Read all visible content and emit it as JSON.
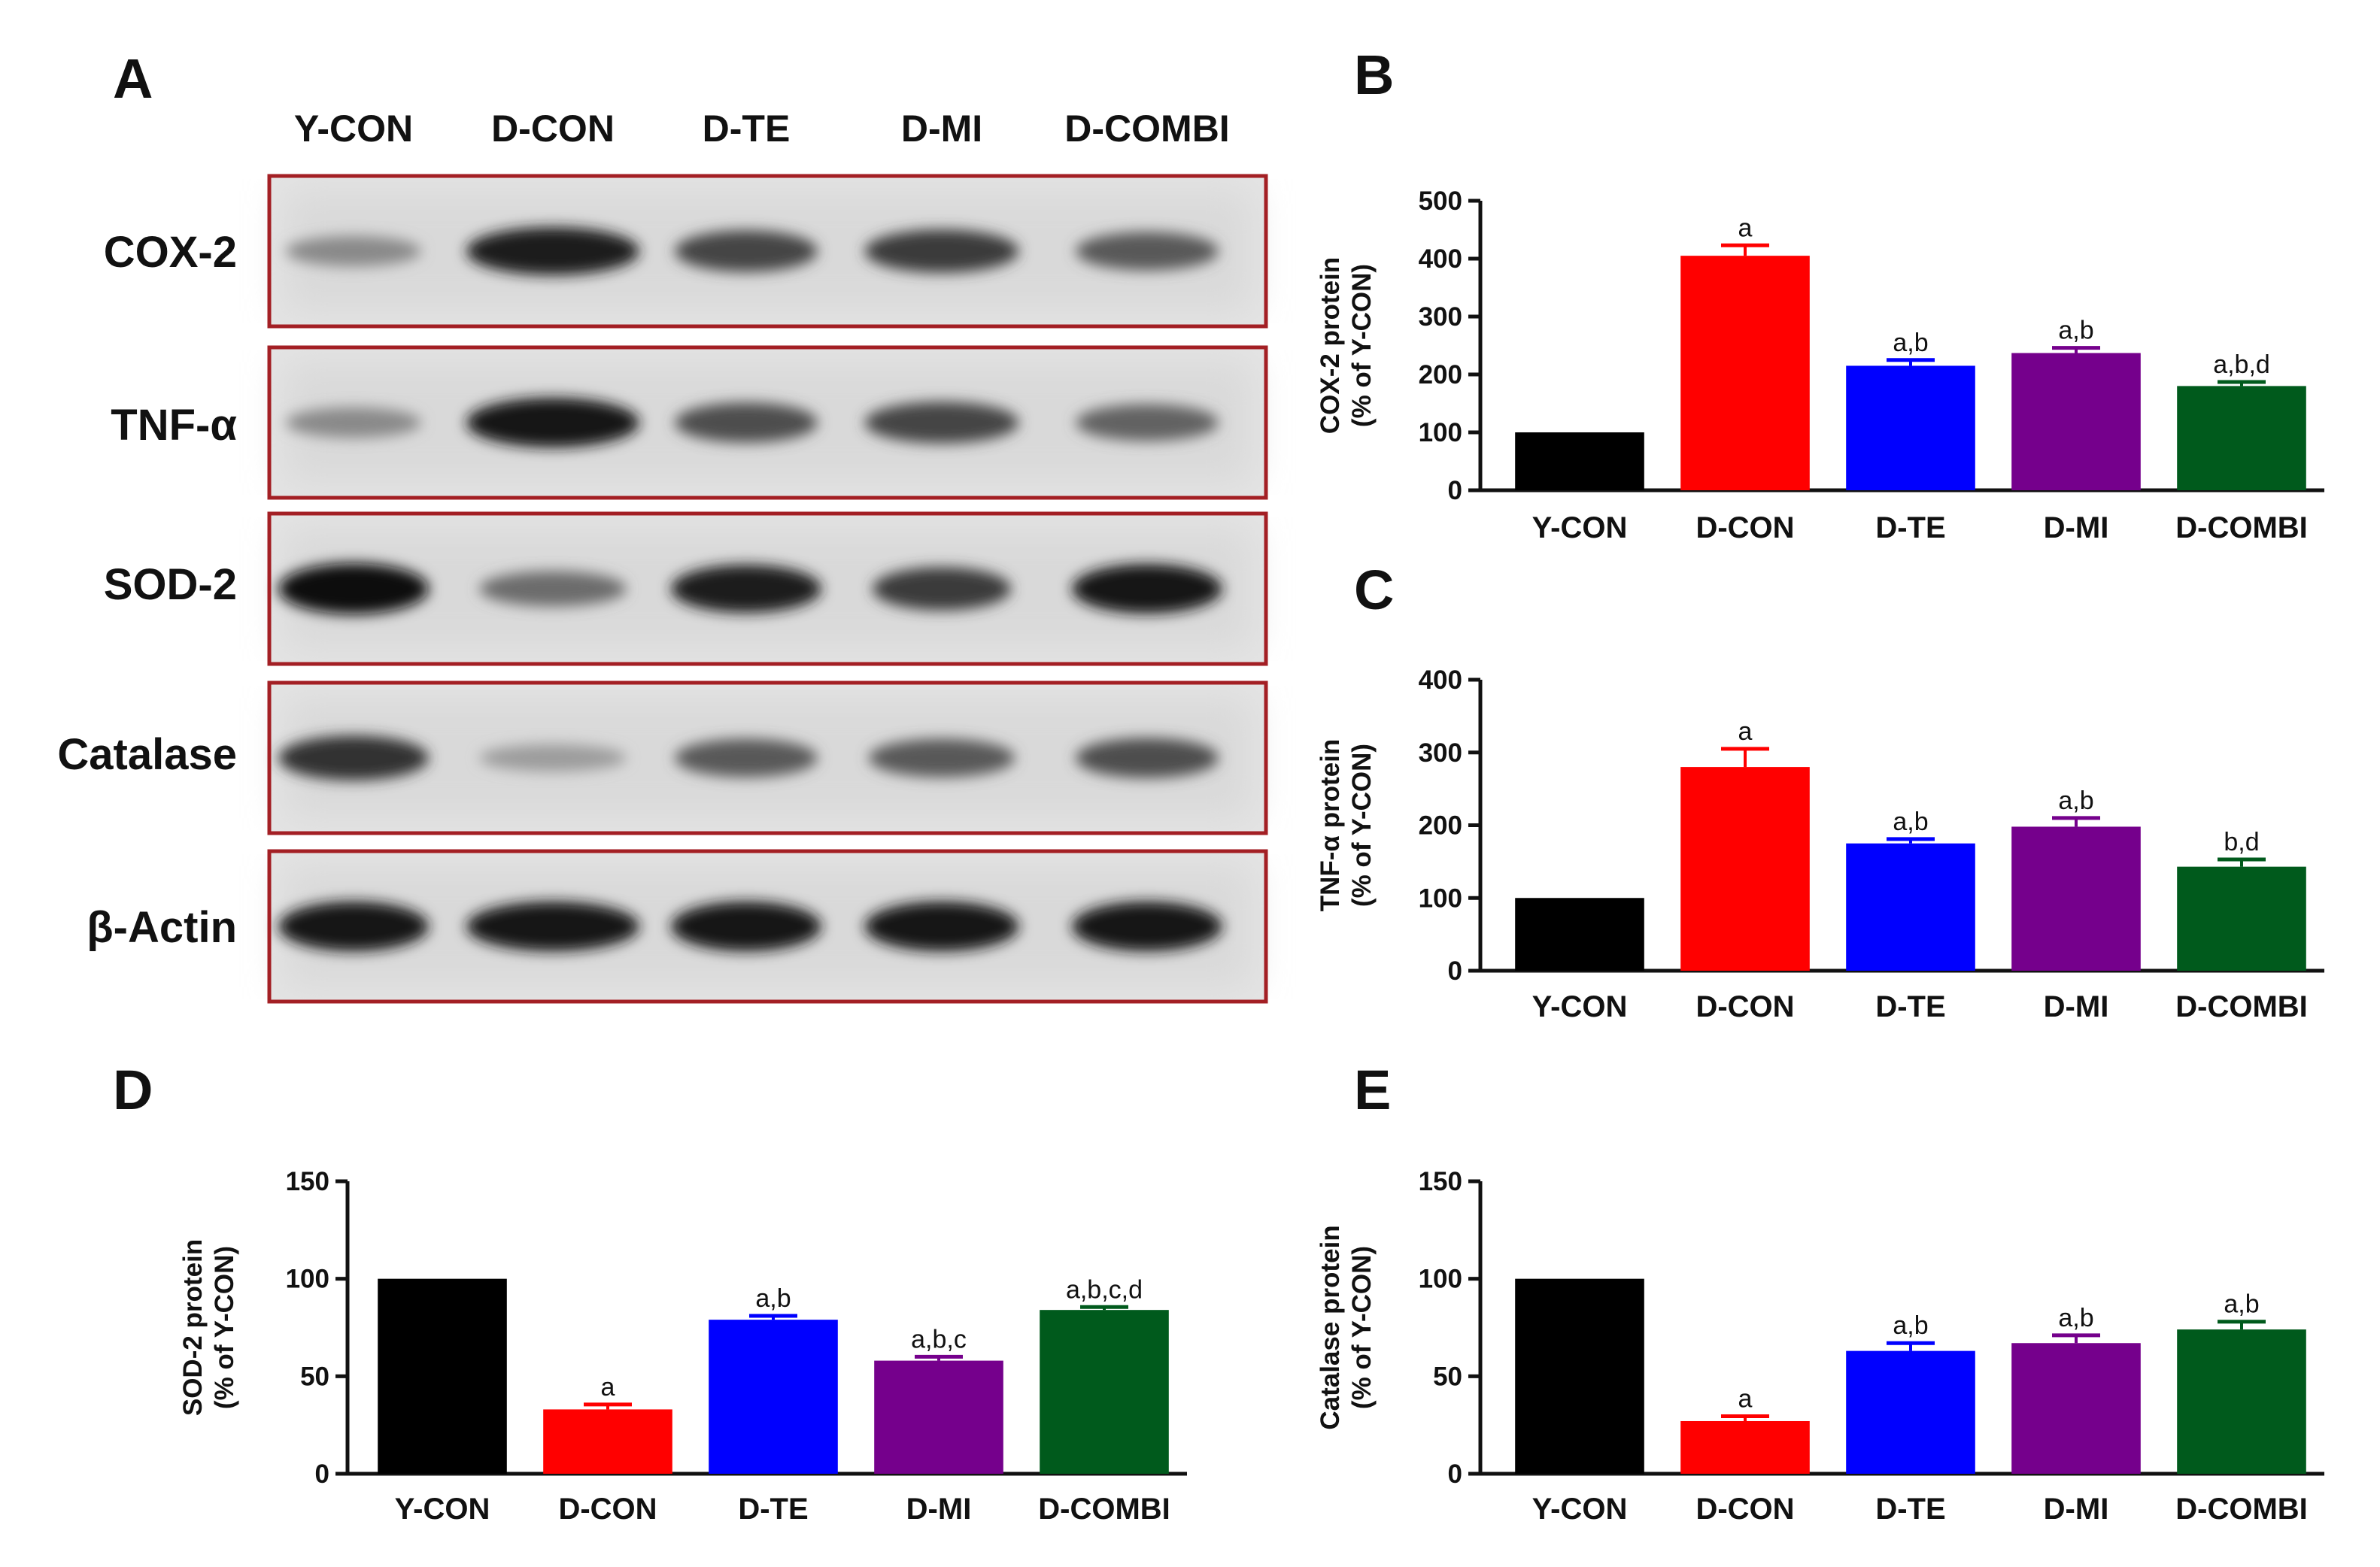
{
  "blot": {
    "panel_letter": "A",
    "lanes": [
      "Y-CON",
      "D-CON",
      "D-TE",
      "D-MI",
      "D-COMBI"
    ],
    "frame_color": "#a31f24",
    "rows": [
      {
        "label": "COX-2",
        "intensities": [
          0.35,
          0.9,
          0.7,
          0.75,
          0.6
        ],
        "widths": [
          0.9,
          1,
          0.95,
          1,
          0.95
        ]
      },
      {
        "label": "TNF-α",
        "intensities": [
          0.35,
          0.95,
          0.65,
          0.7,
          0.55
        ],
        "widths": [
          0.9,
          1,
          0.95,
          1,
          0.95
        ]
      },
      {
        "label": "SOD-2",
        "intensities": [
          1.0,
          0.5,
          0.9,
          0.75,
          0.95
        ],
        "widths": [
          1,
          0.85,
          1,
          0.9,
          1
        ]
      },
      {
        "label": "Catalase",
        "intensities": [
          0.8,
          0.25,
          0.6,
          0.6,
          0.65
        ],
        "widths": [
          1,
          0.85,
          0.95,
          0.95,
          0.95
        ]
      },
      {
        "label": "β-Actin",
        "intensities": [
          0.95,
          0.95,
          0.95,
          0.95,
          0.95
        ],
        "widths": [
          1,
          1,
          1,
          1,
          1
        ]
      }
    ]
  },
  "chart_data": [
    {
      "panel": "B",
      "type": "bar",
      "categories": [
        "Y-CON",
        "D-CON",
        "D-TE",
        "D-MI",
        "D-COMBI"
      ],
      "values": [
        100,
        405,
        215,
        237,
        180
      ],
      "errors": [
        0,
        18,
        10,
        9,
        7
      ],
      "labels": [
        "",
        "a",
        "a,b",
        "a,b",
        "a,b,d"
      ],
      "colors": [
        "#000000",
        "#ff0000",
        "#0000ff",
        "#75008c",
        "#005a1c"
      ],
      "ylim": [
        0,
        500
      ],
      "yticks": [
        0,
        100,
        200,
        300,
        400,
        500
      ],
      "ylabel": [
        "COX-2 protein",
        "(% of Y-CON)"
      ]
    },
    {
      "panel": "C",
      "type": "bar",
      "categories": [
        "Y-CON",
        "D-CON",
        "D-TE",
        "D-MI",
        "D-COMBI"
      ],
      "values": [
        100,
        280,
        175,
        198,
        143
      ],
      "errors": [
        0,
        25,
        6,
        12,
        10
      ],
      "labels": [
        "",
        "a",
        "a,b",
        "a,b",
        "b,d"
      ],
      "colors": [
        "#000000",
        "#ff0000",
        "#0000ff",
        "#75008c",
        "#005a1c"
      ],
      "ylim": [
        0,
        400
      ],
      "yticks": [
        0,
        100,
        200,
        300,
        400
      ],
      "ylabel": [
        "TNF-α protein",
        "(% of Y-CON)"
      ]
    },
    {
      "panel": "D",
      "type": "bar",
      "categories": [
        "Y-CON",
        "D-CON",
        "D-TE",
        "D-MI",
        "D-COMBI"
      ],
      "values": [
        100,
        33,
        79,
        58,
        84
      ],
      "errors": [
        0,
        2.5,
        2,
        2,
        1.5
      ],
      "labels": [
        "",
        "a",
        "a,b",
        "a,b,c",
        "a,b,c,d"
      ],
      "colors": [
        "#000000",
        "#ff0000",
        "#0000ff",
        "#75008c",
        "#005a1c"
      ],
      "ylim": [
        0,
        150
      ],
      "yticks": [
        0,
        50,
        100,
        150
      ],
      "ylabel": [
        "SOD-2 protein",
        "(% of Y-CON)"
      ]
    },
    {
      "panel": "E",
      "type": "bar",
      "categories": [
        "Y-CON",
        "D-CON",
        "D-TE",
        "D-MI",
        "D-COMBI"
      ],
      "values": [
        100,
        27,
        63,
        67,
        74
      ],
      "errors": [
        0,
        2.5,
        4,
        4,
        4
      ],
      "labels": [
        "",
        "a",
        "a,b",
        "a,b",
        "a,b"
      ],
      "colors": [
        "#000000",
        "#ff0000",
        "#0000ff",
        "#75008c",
        "#005a1c"
      ],
      "ylim": [
        0,
        150
      ],
      "yticks": [
        0,
        50,
        100,
        150
      ],
      "ylabel": [
        "Catalase protein",
        "(% of Y-CON)"
      ]
    }
  ]
}
